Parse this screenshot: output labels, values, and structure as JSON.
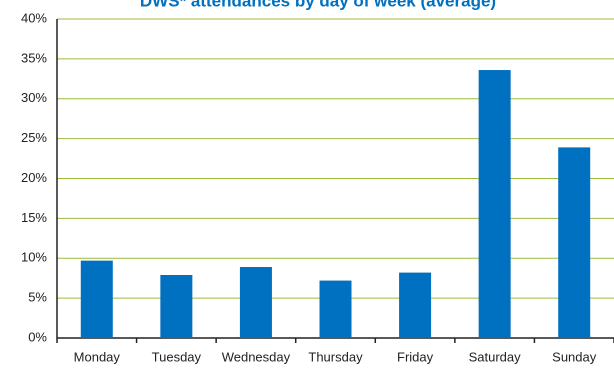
{
  "chart_data": {
    "type": "bar",
    "title": "DWS* attendances by day of week (average)",
    "categories": [
      "Monday",
      "Tuesday",
      "Wednesday",
      "Thursday",
      "Friday",
      "Saturday",
      "Sunday"
    ],
    "values": [
      9.7,
      7.9,
      8.9,
      7.2,
      8.2,
      33.6,
      23.9
    ],
    "color": "#0070c0",
    "ylim": [
      0,
      40
    ],
    "yticks": [
      {
        "value": 0,
        "label": "0%"
      },
      {
        "value": 5,
        "label": "5%"
      },
      {
        "value": 10,
        "label": "10%"
      },
      {
        "value": 15,
        "label": "15%"
      },
      {
        "value": 20,
        "label": "20%"
      },
      {
        "value": 25,
        "label": "25%"
      },
      {
        "value": 30,
        "label": "30%"
      },
      {
        "value": 35,
        "label": "35%"
      },
      {
        "value": 40,
        "label": "40%"
      }
    ],
    "grid": true
  }
}
